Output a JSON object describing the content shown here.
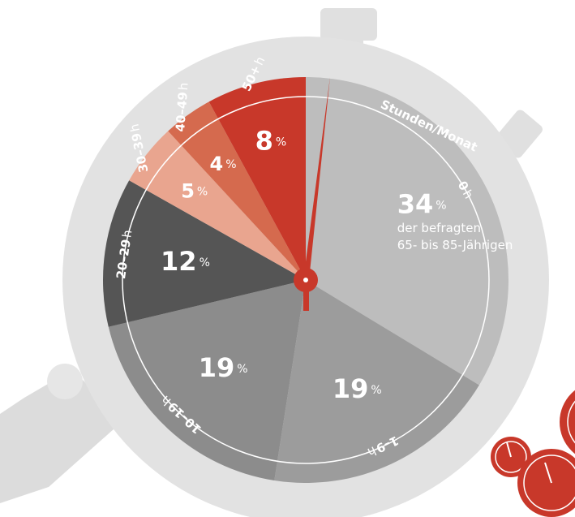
{
  "chart_data": {
    "type": "pie",
    "subtitle": "Stunden/Monat",
    "annotation": [
      "der befragten",
      "65- bis 85-Jährigen"
    ],
    "categories": [
      "0",
      "1–9",
      "10–19",
      "20–29",
      "30–39",
      "40–49",
      "50+"
    ],
    "category_unit": "h",
    "values": [
      34,
      19,
      19,
      12,
      5,
      4,
      8
    ],
    "value_unit": "%",
    "colors": [
      "#bdbdbd",
      "#9c9c9c",
      "#8c8c8c",
      "#555555",
      "#e9a58f",
      "#d56a4e",
      "#c8382a"
    ]
  }
}
